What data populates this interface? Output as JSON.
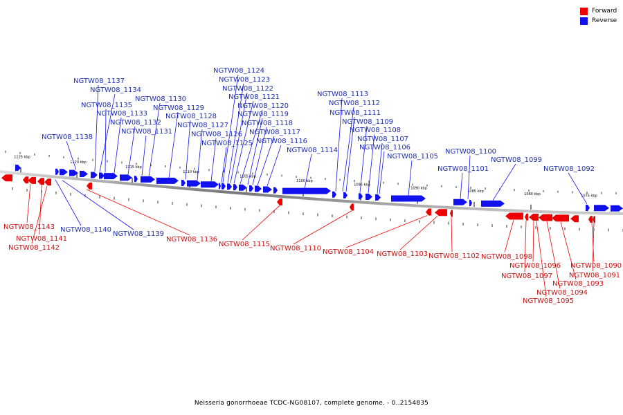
{
  "legend": {
    "forward_label": "Forward",
    "reverse_label": "Reverse",
    "forward_color": "#ee0000",
    "reverse_color": "#1111ee"
  },
  "caption": "Neisseria gonorrhoeae TCDC-NG08107, complete genome. - 0..2154835",
  "scale_labels": [
    "1125 kbp",
    "1120 kbp",
    "1115 kbp",
    "1110 kbp",
    "1105 kbp",
    "1100 kbp",
    "1095 kbp",
    "1090 kbp",
    "1085 kbp",
    "1080 kbp",
    "1075 kbp"
  ],
  "reverse_genes": [
    "NGTW08_1137",
    "NGTW08_1134",
    "NGTW08_1135",
    "NGTW08_1133",
    "NGTW08_1132",
    "NGTW08_1131",
    "NGTW08_1130",
    "NGTW08_1129",
    "NGTW08_1128",
    "NGTW08_1127",
    "NGTW08_1126",
    "NGTW08_1125",
    "NGTW08_1124",
    "NGTW08_1123",
    "NGTW08_1122",
    "NGTW08_1121",
    "NGTW08_1120",
    "NGTW08_1119",
    "NGTW08_1118",
    "NGTW08_1117",
    "NGTW08_1116",
    "NGTW08_1114",
    "NGTW08_1138",
    "NGTW08_1113",
    "NGTW08_1112",
    "NGTW08_1111",
    "NGTW08_1109",
    "NGTW08_1108",
    "NGTW08_1107",
    "NGTW08_1106",
    "NGTW08_1105",
    "NGTW08_1100",
    "NGTW08_1101",
    "NGTW08_1099",
    "NGTW08_1092",
    "NGTW08_1140",
    "NGTW08_1139"
  ],
  "forward_genes": [
    "NGTW08_1143",
    "NGTW08_1141",
    "NGTW08_1142",
    "NGTW08_1136",
    "NGTW08_1115",
    "NGTW08_1110",
    "NGTW08_1104",
    "NGTW08_1103",
    "NGTW08_1102",
    "NGTW08_1098",
    "NGTW08_1096",
    "NGTW08_1097",
    "NGTW08_1093",
    "NGTW08_1094",
    "NGTW08_1095",
    "NGTW08_1090",
    "NGTW08_1091"
  ]
}
